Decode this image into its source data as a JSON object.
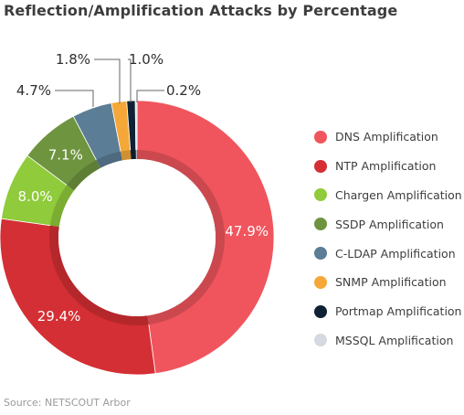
{
  "title": "Reflection/Amplification Attacks by Percentage",
  "source": "Source: NETSCOUT Arbor",
  "chart_data": {
    "type": "pie",
    "title": "Reflection/Amplification Attacks by Percentage",
    "donut": true,
    "slices": [
      {
        "name": "DNS Amplification",
        "value": 47.9,
        "label": "47.9%",
        "color": "#f0555d"
      },
      {
        "name": "NTP Amplification",
        "value": 29.4,
        "label": "29.4%",
        "color": "#d42f34"
      },
      {
        "name": "Chargen Amplification",
        "value": 8.0,
        "label": "8.0%",
        "color": "#8fcb3a"
      },
      {
        "name": "SSDP Amplification",
        "value": 7.1,
        "label": "7.1%",
        "color": "#6f9440"
      },
      {
        "name": "C-LDAP Amplification",
        "value": 4.7,
        "label": "4.7%",
        "color": "#5b7d95"
      },
      {
        "name": "SNMP Amplification",
        "value": 1.8,
        "label": "1.8%",
        "color": "#f5a838"
      },
      {
        "name": "Portmap Amplification",
        "value": 1.0,
        "label": "1.0%",
        "color": "#0f2134"
      },
      {
        "name": "MSSQL Amplification",
        "value": 0.2,
        "label": "0.2%",
        "color": "#d5dae1"
      }
    ],
    "legend_position": "right"
  }
}
